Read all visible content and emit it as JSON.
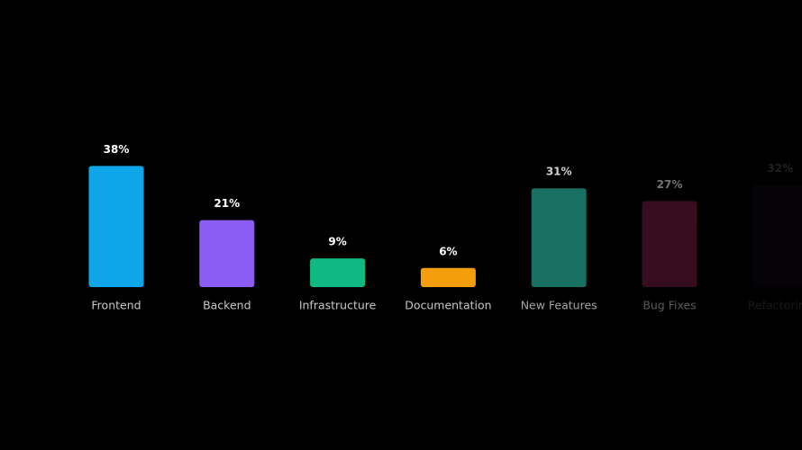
{
  "chart_data": {
    "type": "bar",
    "categories": [
      "Frontend",
      "Backend",
      "Infrastructure",
      "Documentation",
      "New Features",
      "Bug Fixes",
      "Refactoring"
    ],
    "values": [
      38,
      21,
      9,
      6,
      31,
      27,
      32
    ],
    "value_labels": [
      "38%",
      "21%",
      "9%",
      "6%",
      "31%",
      "27%",
      "32%"
    ],
    "colors": [
      "#0ea5e9",
      "#8b5cf6",
      "#10b981",
      "#f59e0b",
      "#1d8a78",
      "#7a1d45",
      "#2a1846"
    ],
    "ylim": [
      0,
      48
    ],
    "grid": true
  }
}
